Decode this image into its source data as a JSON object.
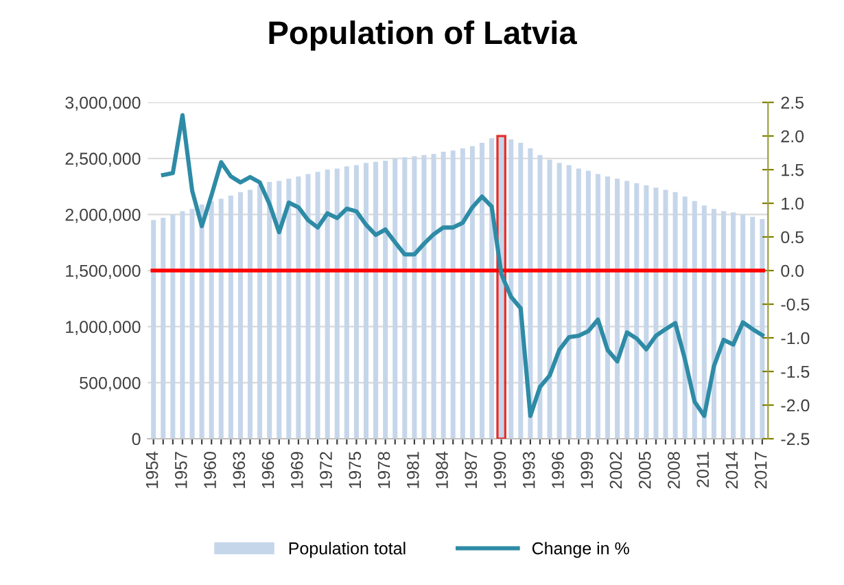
{
  "chart_data": {
    "type": "bar",
    "title": "Population of Latvia",
    "categories": [
      "1954",
      null,
      null,
      "1957",
      null,
      null,
      "1960",
      null,
      null,
      "1963",
      null,
      null,
      "1966",
      null,
      null,
      "1969",
      null,
      null,
      "1972",
      null,
      null,
      "1975",
      null,
      null,
      "1978",
      null,
      null,
      "1981",
      null,
      null,
      "1984",
      null,
      null,
      "1987",
      null,
      null,
      "1990",
      null,
      null,
      "1993",
      null,
      null,
      "1996",
      null,
      null,
      "1999",
      null,
      null,
      "2002",
      null,
      null,
      "2005",
      null,
      null,
      "2008",
      null,
      null,
      "2011",
      null,
      null,
      "2014",
      null,
      null,
      "2017"
    ],
    "series": [
      {
        "name": "Population total",
        "color": "#c6d6ea",
        "values": [
          1950000,
          1970000,
          2000000,
          2030000,
          2050000,
          2090000,
          2120000,
          2140000,
          2170000,
          2200000,
          2220000,
          2260000,
          2290000,
          2300000,
          2320000,
          2340000,
          2360000,
          2380000,
          2400000,
          2410000,
          2430000,
          2440000,
          2460000,
          2470000,
          2480000,
          2500000,
          2510000,
          2520000,
          2530000,
          2540000,
          2560000,
          2570000,
          2590000,
          2610000,
          2640000,
          2680000,
          2690000,
          2670000,
          2640000,
          2590000,
          2530000,
          2490000,
          2460000,
          2440000,
          2410000,
          2390000,
          2360000,
          2340000,
          2320000,
          2300000,
          2280000,
          2260000,
          2240000,
          2220000,
          2200000,
          2160000,
          2120000,
          2080000,
          2050000,
          2030000,
          2020000,
          2000000,
          1980000,
          1960000
        ]
      },
      {
        "name": "Change in %",
        "type": "line",
        "axis": "y2",
        "color": "#2e8ba6",
        "values": [
          null,
          1.42,
          1.45,
          2.31,
          1.19,
          0.66,
          1.12,
          1.61,
          1.4,
          1.31,
          1.39,
          1.31,
          0.99,
          0.57,
          1.01,
          0.94,
          0.75,
          0.64,
          0.85,
          0.78,
          0.92,
          0.88,
          0.68,
          0.53,
          0.61,
          0.42,
          0.24,
          0.24,
          0.4,
          0.54,
          0.64,
          0.64,
          0.71,
          0.94,
          1.1,
          0.95,
          -0.05,
          -0.39,
          -0.56,
          -2.16,
          -1.73,
          -1.56,
          -1.18,
          -0.99,
          -0.97,
          -0.9,
          -0.73,
          -1.18,
          -1.35,
          -0.92,
          -1.01,
          -1.17,
          -0.97,
          -0.87,
          -0.78,
          -1.32,
          -1.95,
          -2.16,
          -1.42,
          -1.03,
          -1.1,
          -0.77,
          -0.87,
          -0.96
        ]
      }
    ],
    "ylim": [
      0,
      3000000
    ],
    "yticks": [
      {
        "value": 0,
        "label": "0"
      },
      {
        "value": 500000,
        "label": "500,000"
      },
      {
        "value": 1000000,
        "label": "1,000,000"
      },
      {
        "value": 1500000,
        "label": "1,500,000"
      },
      {
        "value": 2000000,
        "label": "2,000,000"
      },
      {
        "value": 2500000,
        "label": "2,500,000"
      },
      {
        "value": 3000000,
        "label": "3,000,000"
      }
    ],
    "y2lim": [
      -2.5,
      2.5
    ],
    "y2ticks": [
      {
        "value": -2.5,
        "label": "-2.5"
      },
      {
        "value": -2.0,
        "label": "-2.0"
      },
      {
        "value": -1.5,
        "label": "-1.5"
      },
      {
        "value": -1.0,
        "label": "-1.0"
      },
      {
        "value": -0.5,
        "label": "-0.5"
      },
      {
        "value": 0,
        "label": "0.0"
      },
      {
        "value": 0.5,
        "label": "0.5"
      },
      {
        "value": 1.0,
        "label": "1.0"
      },
      {
        "value": 1.5,
        "label": "1.5"
      },
      {
        "value": 2.0,
        "label": "2.0"
      },
      {
        "value": 2.5,
        "label": "2.5"
      }
    ],
    "ref_lines": [
      {
        "axis": "y2",
        "value": 0,
        "color": "#ff0000"
      }
    ],
    "bands": [
      {
        "axis": "x",
        "from": "1990",
        "to": "1990",
        "color": "#e03030"
      }
    ],
    "grid": "y",
    "legend": "bottom",
    "marker": "none",
    "line_style": "solid"
  }
}
